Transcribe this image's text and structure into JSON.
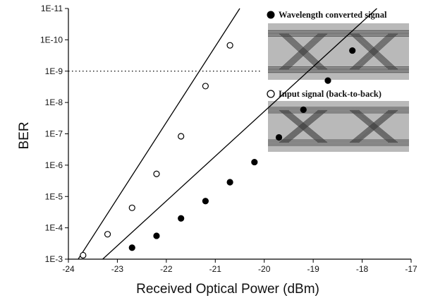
{
  "chart_data": {
    "type": "scatter",
    "xlabel": "Received Optical Power (dBm)",
    "ylabel": "BER",
    "xlim": [
      -24,
      -17
    ],
    "ylim_log10": [
      -11,
      -3
    ],
    "x_ticks": [
      -24,
      -23,
      -22,
      -21,
      -20,
      -19,
      -18,
      -17
    ],
    "x_tick_labels": [
      "-24",
      "-23",
      "-22",
      "-21",
      "-20",
      "-19",
      "-18",
      "-17"
    ],
    "y_ticks_log10": [
      -3,
      -4,
      -5,
      -6,
      -7,
      -8,
      -9,
      -10,
      -11
    ],
    "y_tick_labels": [
      "1E-3",
      "1E-4",
      "1E-5",
      "1E-6",
      "1E-7",
      "1E-8",
      "1E-9",
      "1E-10",
      "1E-11"
    ],
    "y_scale": "log",
    "grid": false,
    "reference_line_log10": -9,
    "legend_position": "top-right",
    "series": [
      {
        "name": "Wavelength converted signal",
        "marker": "filled-circle",
        "color": "#000000",
        "points": [
          {
            "x": -22.7,
            "y": 0.00043
          },
          {
            "x": -22.2,
            "y": 0.00018
          },
          {
            "x": -21.7,
            "y": 5e-05
          },
          {
            "x": -21.2,
            "y": 1.4e-05
          },
          {
            "x": -20.7,
            "y": 3.5e-06
          },
          {
            "x": -20.2,
            "y": 8e-07
          },
          {
            "x": -19.7,
            "y": 1.3e-07
          },
          {
            "x": -19.2,
            "y": 1.7e-08
          },
          {
            "x": -18.7,
            "y": 2e-09
          },
          {
            "x": -18.2,
            "y": 2.2e-10
          }
        ],
        "fit_line": [
          {
            "x": -23.3,
            "y": 0.001
          },
          {
            "x": -17.7,
            "y": 1e-11
          }
        ]
      },
      {
        "name": "Input signal (back-to-back)",
        "marker": "open-circle",
        "color": "#000000",
        "points": [
          {
            "x": -23.7,
            "y": 0.00075
          },
          {
            "x": -23.2,
            "y": 0.00016
          },
          {
            "x": -22.7,
            "y": 2.3e-05
          },
          {
            "x": -22.2,
            "y": 1.9e-06
          },
          {
            "x": -21.7,
            "y": 1.2e-07
          },
          {
            "x": -21.2,
            "y": 3e-09
          },
          {
            "x": -20.7,
            "y": 1.5e-10
          }
        ],
        "fit_line": [
          {
            "x": -23.8,
            "y": 0.001
          },
          {
            "x": -20.5,
            "y": 1e-11
          }
        ]
      }
    ]
  },
  "colors": {
    "axis": "#000000",
    "eye_background": "#b9b9b9",
    "eye_trace": "#5a5a5a"
  }
}
